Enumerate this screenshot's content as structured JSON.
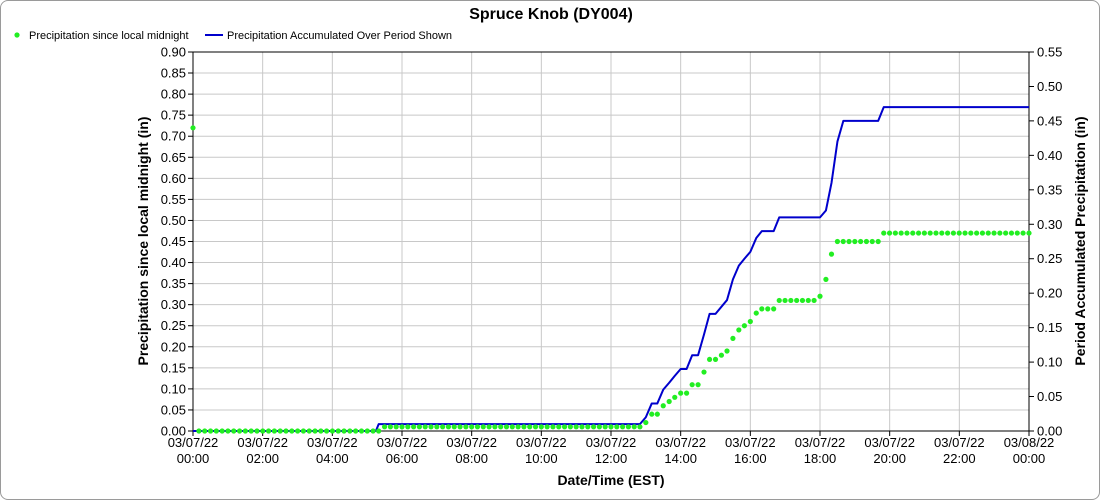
{
  "chart_data": {
    "type": "line",
    "title": "Spruce Knob (DY004)",
    "xlabel": "Date/Time (EST)",
    "ylabel_left": "Precipitation since local midnight (in)",
    "ylabel_right": "Period Accumulated Precipitation (in)",
    "ylim_left": [
      0,
      0.9
    ],
    "ylim_right": [
      0,
      0.55
    ],
    "yticks_left": [
      "0.00",
      "0.05",
      "0.10",
      "0.15",
      "0.20",
      "0.25",
      "0.30",
      "0.35",
      "0.40",
      "0.45",
      "0.50",
      "0.55",
      "0.60",
      "0.65",
      "0.70",
      "0.75",
      "0.80",
      "0.85",
      "0.90"
    ],
    "yticks_right": [
      "0.00",
      "0.05",
      "0.10",
      "0.15",
      "0.20",
      "0.25",
      "0.30",
      "0.35",
      "0.40",
      "0.45",
      "0.50",
      "0.55"
    ],
    "xlim_hours": [
      0,
      24
    ],
    "xticks": [
      {
        "date": "03/07/22",
        "time": "00:00"
      },
      {
        "date": "03/07/22",
        "time": "02:00"
      },
      {
        "date": "03/07/22",
        "time": "04:00"
      },
      {
        "date": "03/07/22",
        "time": "06:00"
      },
      {
        "date": "03/07/22",
        "time": "08:00"
      },
      {
        "date": "03/07/22",
        "time": "10:00"
      },
      {
        "date": "03/07/22",
        "time": "12:00"
      },
      {
        "date": "03/07/22",
        "time": "14:00"
      },
      {
        "date": "03/07/22",
        "time": "16:00"
      },
      {
        "date": "03/07/22",
        "time": "18:00"
      },
      {
        "date": "03/07/22",
        "time": "20:00"
      },
      {
        "date": "03/07/22",
        "time": "22:00"
      },
      {
        "date": "03/08/22",
        "time": "00:00"
      }
    ],
    "grid": true,
    "legend_position": "top-left",
    "series": [
      {
        "name": "Precipitation since local midnight",
        "kind": "scatter",
        "axis": "left",
        "color": "#22ee22",
        "points": [
          [
            0.0,
            0.72
          ],
          [
            0.17,
            0.0
          ],
          [
            5.33,
            0.0
          ],
          [
            5.5,
            0.01
          ],
          [
            12.83,
            0.01
          ],
          [
            13.0,
            0.02
          ],
          [
            13.17,
            0.04
          ],
          [
            13.33,
            0.04
          ],
          [
            13.5,
            0.06
          ],
          [
            13.67,
            0.07
          ],
          [
            13.83,
            0.08
          ],
          [
            14.0,
            0.09
          ],
          [
            14.17,
            0.09
          ],
          [
            14.33,
            0.11
          ],
          [
            14.5,
            0.11
          ],
          [
            14.67,
            0.14
          ],
          [
            14.83,
            0.17
          ],
          [
            15.0,
            0.17
          ],
          [
            15.17,
            0.18
          ],
          [
            15.33,
            0.19
          ],
          [
            15.5,
            0.22
          ],
          [
            15.67,
            0.24
          ],
          [
            15.83,
            0.25
          ],
          [
            16.0,
            0.26
          ],
          [
            16.17,
            0.28
          ],
          [
            16.33,
            0.29
          ],
          [
            16.5,
            0.29
          ],
          [
            16.67,
            0.29
          ],
          [
            16.83,
            0.31
          ],
          [
            17.83,
            0.31
          ],
          [
            18.0,
            0.32
          ],
          [
            18.17,
            0.36
          ],
          [
            18.33,
            0.42
          ],
          [
            18.5,
            0.45
          ],
          [
            19.67,
            0.45
          ],
          [
            19.83,
            0.47
          ],
          [
            24.0,
            0.47
          ]
        ]
      },
      {
        "name": "Precipitation Accumulated Over Period Shown",
        "kind": "line",
        "axis": "right",
        "color": "#0000cc",
        "points": [
          [
            0.0,
            0.0
          ],
          [
            5.25,
            0.0
          ],
          [
            5.33,
            0.01
          ],
          [
            12.83,
            0.01
          ],
          [
            13.0,
            0.02
          ],
          [
            13.17,
            0.04
          ],
          [
            13.33,
            0.04
          ],
          [
            13.5,
            0.06
          ],
          [
            13.67,
            0.07
          ],
          [
            13.83,
            0.08
          ],
          [
            14.0,
            0.09
          ],
          [
            14.17,
            0.09
          ],
          [
            14.33,
            0.11
          ],
          [
            14.5,
            0.11
          ],
          [
            14.67,
            0.14
          ],
          [
            14.83,
            0.17
          ],
          [
            15.0,
            0.17
          ],
          [
            15.33,
            0.19
          ],
          [
            15.5,
            0.22
          ],
          [
            15.67,
            0.24
          ],
          [
            15.83,
            0.25
          ],
          [
            16.0,
            0.26
          ],
          [
            16.17,
            0.28
          ],
          [
            16.33,
            0.29
          ],
          [
            16.67,
            0.29
          ],
          [
            16.83,
            0.31
          ],
          [
            18.0,
            0.31
          ],
          [
            18.17,
            0.32
          ],
          [
            18.33,
            0.36
          ],
          [
            18.5,
            0.42
          ],
          [
            18.67,
            0.45
          ],
          [
            19.67,
            0.45
          ],
          [
            19.83,
            0.47
          ],
          [
            24.0,
            0.47
          ]
        ]
      }
    ]
  }
}
